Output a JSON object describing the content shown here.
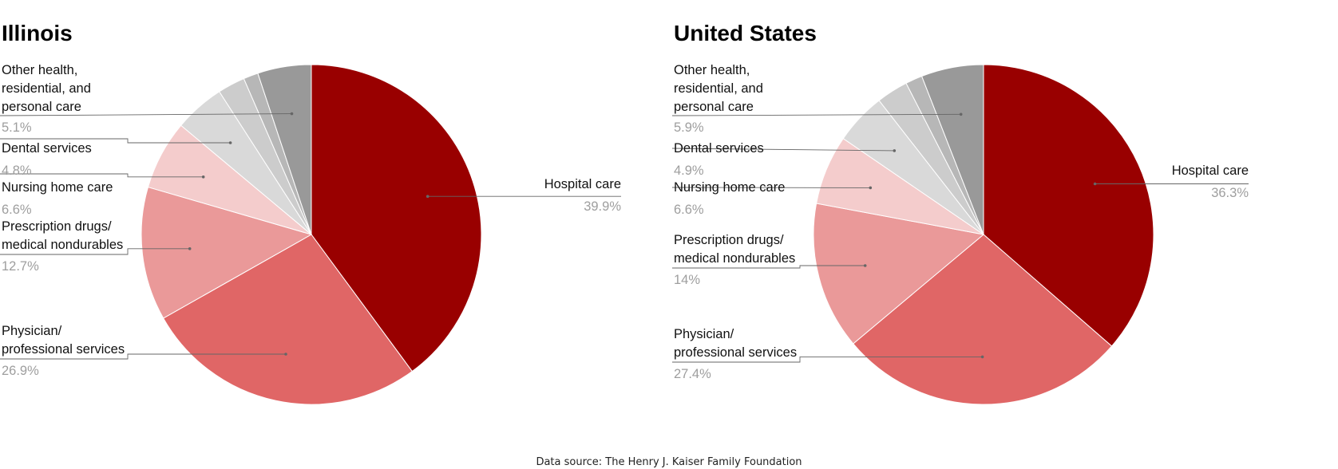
{
  "chart_data": [
    {
      "type": "pie",
      "title": "Illinois",
      "slices": [
        {
          "label": "Hospital care",
          "value": 39.9,
          "value_label": "39.9%",
          "color": "#990000"
        },
        {
          "label": "Physician/\nprofessional services",
          "value": 26.9,
          "value_label": "26.9%",
          "color": "#e06666"
        },
        {
          "label": "Prescription drugs/\nmedical nondurables",
          "value": 12.7,
          "value_label": "12.7%",
          "color": "#ea9999"
        },
        {
          "label": "Nursing home care",
          "value": 6.6,
          "value_label": "6.6%",
          "color": "#f4cccc"
        },
        {
          "label": "Dental services",
          "value": 4.8,
          "value_label": "4.8%",
          "color": "#d9d9d9"
        },
        {
          "label": "",
          "value": 2.6,
          "color": "#cccccc"
        },
        {
          "label": "",
          "value": 1.4,
          "color": "#b7b7b7"
        },
        {
          "label": "Other health,\nresidential, and\npersonal care",
          "value": 5.1,
          "value_label": "5.1%",
          "color": "#999999"
        }
      ]
    },
    {
      "type": "pie",
      "title": "United States",
      "slices": [
        {
          "label": "Hospital care",
          "value": 36.3,
          "value_label": "36.3%",
          "color": "#990000"
        },
        {
          "label": "Physician/\nprofessional services",
          "value": 27.4,
          "value_label": "27.4%",
          "color": "#e06666"
        },
        {
          "label": "Prescription drugs/\nmedical nondurables",
          "value": 14,
          "value_label": "14%",
          "color": "#ea9999"
        },
        {
          "label": "Nursing home care",
          "value": 6.6,
          "value_label": "6.6%",
          "color": "#f4cccc"
        },
        {
          "label": "Dental services",
          "value": 4.9,
          "value_label": "4.9%",
          "color": "#d9d9d9"
        },
        {
          "label": "",
          "value": 3.0,
          "color": "#cccccc"
        },
        {
          "label": "",
          "value": 1.6,
          "color": "#b7b7b7"
        },
        {
          "label": "Other health,\nresidential, and\npersonal care",
          "value": 5.9,
          "value_label": "5.9%",
          "color": "#999999"
        }
      ]
    }
  ],
  "footer": {
    "source": "Data source: The Henry J. Kaiser Family Foundation"
  }
}
